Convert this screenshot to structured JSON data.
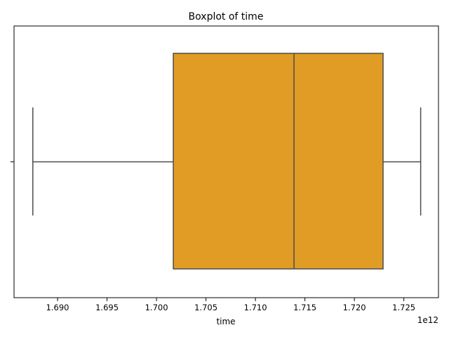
{
  "chart_data": {
    "type": "boxplot",
    "title": "Boxplot of time",
    "xlabel": "time",
    "ylabel": "",
    "offset_label": "1e12",
    "xlim": [
      1.6856,
      1.7285
    ],
    "xticks": [
      1.69,
      1.695,
      1.7,
      1.705,
      1.71,
      1.715,
      1.72,
      1.725
    ],
    "xtick_labels": [
      "1.690",
      "1.695",
      "1.700",
      "1.705",
      "1.710",
      "1.715",
      "1.720",
      "1.725"
    ],
    "box": {
      "whisker_low": 1.6875,
      "q1": 1.7017,
      "median": 1.7139,
      "q3": 1.7229,
      "whisker_high": 1.7267
    },
    "box_color": "#e09c24",
    "line_color": "#4d4d4d",
    "grid": false
  }
}
